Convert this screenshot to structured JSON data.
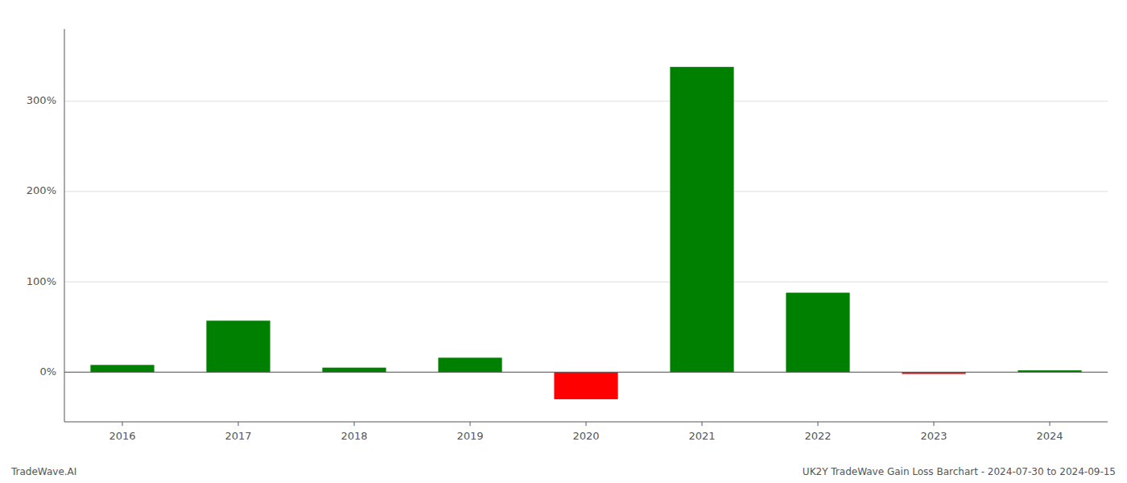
{
  "chart_data": {
    "type": "bar",
    "categories": [
      "2016",
      "2017",
      "2018",
      "2019",
      "2020",
      "2021",
      "2022",
      "2023",
      "2024"
    ],
    "values": [
      8,
      57,
      5,
      16,
      -30,
      338,
      88,
      -2,
      2
    ],
    "colors": [
      "#008000",
      "#008000",
      "#008000",
      "#008000",
      "#ff0000",
      "#008000",
      "#008000",
      "#ff0000",
      "#008000"
    ],
    "ylim": [
      -55,
      380
    ],
    "yticks": [
      {
        "value": 0,
        "label": "0%"
      },
      {
        "value": 100,
        "label": "100%"
      },
      {
        "value": 200,
        "label": "200%"
      },
      {
        "value": 300,
        "label": "300%"
      }
    ],
    "grid": true,
    "annotations": [
      "TradeWave.AI",
      "UK2Y TradeWave Gain Loss Barchart - 2024-07-30 to 2024-09-15"
    ]
  }
}
